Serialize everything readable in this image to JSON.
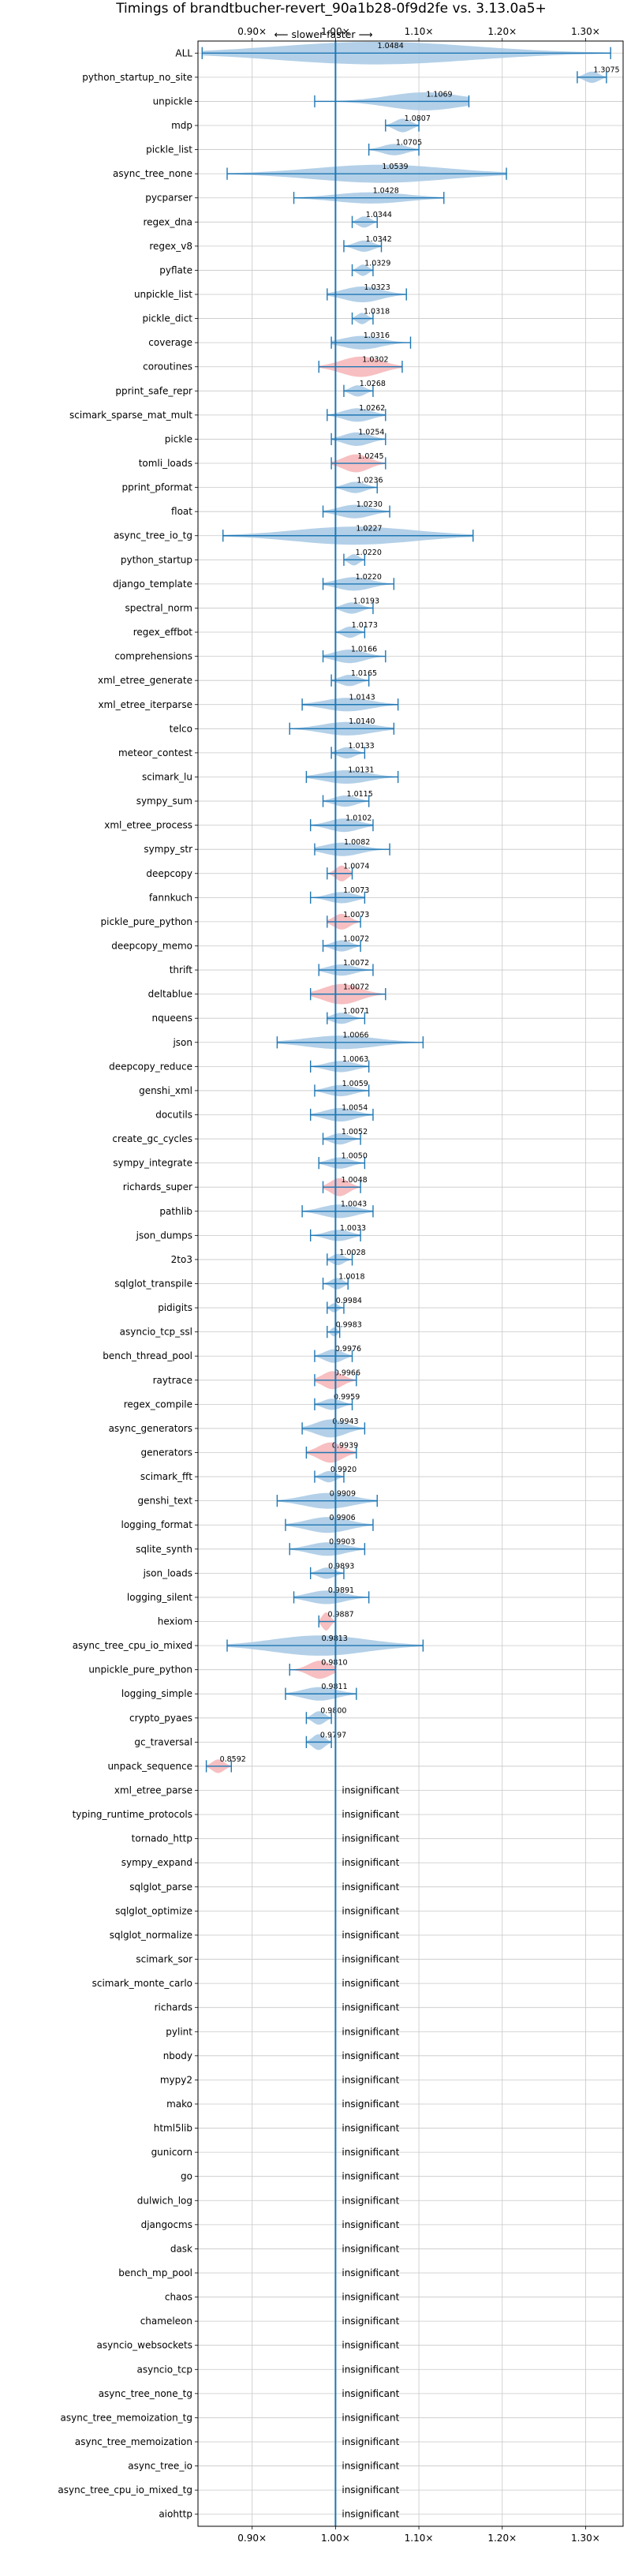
{
  "chart_data": {
    "type": "violin",
    "title": "Timings of brandtbucher-revert_90a1b28-0f9d2fe vs. 3.13.0a5+",
    "subtitle": "⟵ slower   faster ⟶",
    "xlim": [
      0.835,
      1.345
    ],
    "xticks": [
      0.9,
      1.0,
      1.1,
      1.2,
      1.3
    ],
    "xtick_labels": [
      "0.90×",
      "1.00×",
      "1.10×",
      "1.20×",
      "1.30×"
    ],
    "grid": true,
    "reference_line": 1.0,
    "colors": {
      "faster": "#a6c8e4",
      "slower": "#f6b4b6",
      "line": "#1f77b4",
      "grid": "#c8c8c8"
    },
    "insignificant_label": "insignificant",
    "benchmarks": [
      {
        "name": "ALL",
        "mean": 1.0484,
        "min": 0.84,
        "max": 1.33,
        "w": 1.0,
        "slower": false
      },
      {
        "name": "python_startup_no_site",
        "mean": 1.3075,
        "min": 1.29,
        "max": 1.325,
        "w": 0.5,
        "slower": false
      },
      {
        "name": "unpickle",
        "mean": 1.1069,
        "min": 0.975,
        "max": 1.16,
        "w": 0.8,
        "slower": false
      },
      {
        "name": "mdp",
        "mean": 1.0807,
        "min": 1.06,
        "max": 1.1,
        "w": 0.6,
        "slower": false
      },
      {
        "name": "pickle_list",
        "mean": 1.0705,
        "min": 1.04,
        "max": 1.1,
        "w": 0.5,
        "slower": false
      },
      {
        "name": "async_tree_none",
        "mean": 1.0539,
        "min": 0.87,
        "max": 1.205,
        "w": 0.8,
        "slower": false
      },
      {
        "name": "pycparser",
        "mean": 1.0428,
        "min": 0.95,
        "max": 1.13,
        "w": 0.5,
        "slower": false
      },
      {
        "name": "regex_dna",
        "mean": 1.0344,
        "min": 1.02,
        "max": 1.05,
        "w": 0.5,
        "slower": false
      },
      {
        "name": "regex_v8",
        "mean": 1.0342,
        "min": 1.01,
        "max": 1.055,
        "w": 0.5,
        "slower": false
      },
      {
        "name": "pyflate",
        "mean": 1.0329,
        "min": 1.02,
        "max": 1.045,
        "w": 0.5,
        "slower": false
      },
      {
        "name": "unpickle_list",
        "mean": 1.0323,
        "min": 0.99,
        "max": 1.085,
        "w": 0.7,
        "slower": false
      },
      {
        "name": "pickle_dict",
        "mean": 1.0318,
        "min": 1.02,
        "max": 1.045,
        "w": 0.5,
        "slower": false
      },
      {
        "name": "coverage",
        "mean": 1.0316,
        "min": 0.995,
        "max": 1.09,
        "w": 0.6,
        "slower": false
      },
      {
        "name": "coroutines",
        "mean": 1.0302,
        "min": 0.98,
        "max": 1.08,
        "w": 0.9,
        "slower": true
      },
      {
        "name": "pprint_safe_repr",
        "mean": 1.0268,
        "min": 1.01,
        "max": 1.045,
        "w": 0.5,
        "slower": false
      },
      {
        "name": "scimark_sparse_mat_mult",
        "mean": 1.0262,
        "min": 0.99,
        "max": 1.06,
        "w": 0.6,
        "slower": false
      },
      {
        "name": "pickle",
        "mean": 1.0254,
        "min": 0.995,
        "max": 1.06,
        "w": 0.6,
        "slower": false
      },
      {
        "name": "tomli_loads",
        "mean": 1.0245,
        "min": 0.995,
        "max": 1.06,
        "w": 0.8,
        "slower": true
      },
      {
        "name": "pprint_pformat",
        "mean": 1.0236,
        "min": 1.0,
        "max": 1.05,
        "w": 0.5,
        "slower": false
      },
      {
        "name": "float",
        "mean": 1.023,
        "min": 0.985,
        "max": 1.065,
        "w": 0.6,
        "slower": false
      },
      {
        "name": "async_tree_io_tg",
        "mean": 1.0227,
        "min": 0.865,
        "max": 1.165,
        "w": 0.8,
        "slower": false
      },
      {
        "name": "python_startup",
        "mean": 1.022,
        "min": 1.01,
        "max": 1.035,
        "w": 0.5,
        "slower": false
      },
      {
        "name": "django_template",
        "mean": 1.022,
        "min": 0.985,
        "max": 1.07,
        "w": 0.6,
        "slower": false
      },
      {
        "name": "spectral_norm",
        "mean": 1.0193,
        "min": 1.0,
        "max": 1.045,
        "w": 0.5,
        "slower": false
      },
      {
        "name": "regex_effbot",
        "mean": 1.0173,
        "min": 1.0,
        "max": 1.035,
        "w": 0.5,
        "slower": false
      },
      {
        "name": "comprehensions",
        "mean": 1.0166,
        "min": 0.985,
        "max": 1.06,
        "w": 0.6,
        "slower": false
      },
      {
        "name": "xml_etree_generate",
        "mean": 1.0165,
        "min": 0.995,
        "max": 1.04,
        "w": 0.5,
        "slower": false
      },
      {
        "name": "xml_etree_iterparse",
        "mean": 1.0143,
        "min": 0.96,
        "max": 1.075,
        "w": 0.6,
        "slower": false
      },
      {
        "name": "telco",
        "mean": 1.014,
        "min": 0.945,
        "max": 1.07,
        "w": 0.6,
        "slower": false
      },
      {
        "name": "meteor_contest",
        "mean": 1.0133,
        "min": 0.995,
        "max": 1.035,
        "w": 0.5,
        "slower": false
      },
      {
        "name": "scimark_lu",
        "mean": 1.0131,
        "min": 0.965,
        "max": 1.075,
        "w": 0.6,
        "slower": false
      },
      {
        "name": "sympy_sum",
        "mean": 1.0115,
        "min": 0.985,
        "max": 1.04,
        "w": 0.5,
        "slower": false
      },
      {
        "name": "xml_etree_process",
        "mean": 1.0102,
        "min": 0.97,
        "max": 1.045,
        "w": 0.6,
        "slower": false
      },
      {
        "name": "sympy_str",
        "mean": 1.0082,
        "min": 0.975,
        "max": 1.065,
        "w": 0.6,
        "slower": false
      },
      {
        "name": "deepcopy",
        "mean": 1.0074,
        "min": 0.99,
        "max": 1.02,
        "w": 0.7,
        "slower": true
      },
      {
        "name": "fannkuch",
        "mean": 1.0073,
        "min": 0.97,
        "max": 1.035,
        "w": 0.5,
        "slower": false
      },
      {
        "name": "pickle_pure_python",
        "mean": 1.0073,
        "min": 0.99,
        "max": 1.03,
        "w": 0.7,
        "slower": true
      },
      {
        "name": "deepcopy_memo",
        "mean": 1.0072,
        "min": 0.985,
        "max": 1.03,
        "w": 0.5,
        "slower": false
      },
      {
        "name": "thrift",
        "mean": 1.0072,
        "min": 0.98,
        "max": 1.045,
        "w": 0.5,
        "slower": false
      },
      {
        "name": "deltablue",
        "mean": 1.0072,
        "min": 0.97,
        "max": 1.06,
        "w": 0.9,
        "slower": true
      },
      {
        "name": "nqueens",
        "mean": 1.0071,
        "min": 0.99,
        "max": 1.035,
        "w": 0.5,
        "slower": false
      },
      {
        "name": "json",
        "mean": 1.0066,
        "min": 0.93,
        "max": 1.105,
        "w": 0.6,
        "slower": false
      },
      {
        "name": "deepcopy_reduce",
        "mean": 1.0063,
        "min": 0.97,
        "max": 1.04,
        "w": 0.5,
        "slower": false
      },
      {
        "name": "genshi_xml",
        "mean": 1.0059,
        "min": 0.975,
        "max": 1.04,
        "w": 0.5,
        "slower": false
      },
      {
        "name": "docutils",
        "mean": 1.0054,
        "min": 0.97,
        "max": 1.045,
        "w": 0.6,
        "slower": false
      },
      {
        "name": "create_gc_cycles",
        "mean": 1.0052,
        "min": 0.985,
        "max": 1.03,
        "w": 0.5,
        "slower": false
      },
      {
        "name": "sympy_integrate",
        "mean": 1.005,
        "min": 0.98,
        "max": 1.035,
        "w": 0.5,
        "slower": false
      },
      {
        "name": "richards_super",
        "mean": 1.0048,
        "min": 0.985,
        "max": 1.03,
        "w": 0.8,
        "slower": true
      },
      {
        "name": "pathlib",
        "mean": 1.0043,
        "min": 0.96,
        "max": 1.045,
        "w": 0.6,
        "slower": false
      },
      {
        "name": "json_dumps",
        "mean": 1.0033,
        "min": 0.97,
        "max": 1.03,
        "w": 0.5,
        "slower": false
      },
      {
        "name": "2to3",
        "mean": 1.0028,
        "min": 0.99,
        "max": 1.02,
        "w": 0.5,
        "slower": false
      },
      {
        "name": "sqlglot_transpile",
        "mean": 1.0018,
        "min": 0.985,
        "max": 1.015,
        "w": 0.5,
        "slower": false
      },
      {
        "name": "pidigits",
        "mean": 0.9984,
        "min": 0.99,
        "max": 1.01,
        "w": 0.4,
        "slower": false
      },
      {
        "name": "asyncio_tcp_ssl",
        "mean": 0.9983,
        "min": 0.99,
        "max": 1.005,
        "w": 0.4,
        "slower": false
      },
      {
        "name": "bench_thread_pool",
        "mean": 0.9976,
        "min": 0.975,
        "max": 1.02,
        "w": 0.6,
        "slower": false
      },
      {
        "name": "raytrace",
        "mean": 0.9966,
        "min": 0.975,
        "max": 1.025,
        "w": 0.8,
        "slower": true
      },
      {
        "name": "regex_compile",
        "mean": 0.9959,
        "min": 0.975,
        "max": 1.02,
        "w": 0.5,
        "slower": false
      },
      {
        "name": "async_generators",
        "mean": 0.9943,
        "min": 0.96,
        "max": 1.035,
        "w": 0.8,
        "slower": false
      },
      {
        "name": "generators",
        "mean": 0.9939,
        "min": 0.965,
        "max": 1.025,
        "w": 0.9,
        "slower": true
      },
      {
        "name": "scimark_fft",
        "mean": 0.992,
        "min": 0.975,
        "max": 1.01,
        "w": 0.5,
        "slower": false
      },
      {
        "name": "genshi_text",
        "mean": 0.9909,
        "min": 0.93,
        "max": 1.05,
        "w": 0.7,
        "slower": false
      },
      {
        "name": "logging_format",
        "mean": 0.9906,
        "min": 0.94,
        "max": 1.045,
        "w": 0.7,
        "slower": false
      },
      {
        "name": "sqlite_synth",
        "mean": 0.9903,
        "min": 0.945,
        "max": 1.035,
        "w": 0.6,
        "slower": false
      },
      {
        "name": "json_loads",
        "mean": 0.9893,
        "min": 0.97,
        "max": 1.01,
        "w": 0.5,
        "slower": false
      },
      {
        "name": "logging_silent",
        "mean": 0.9891,
        "min": 0.95,
        "max": 1.04,
        "w": 0.6,
        "slower": false
      },
      {
        "name": "hexiom",
        "mean": 0.9887,
        "min": 0.98,
        "max": 1.0,
        "w": 0.8,
        "slower": true
      },
      {
        "name": "async_tree_cpu_io_mixed",
        "mean": 0.9813,
        "min": 0.87,
        "max": 1.105,
        "w": 0.9,
        "slower": false
      },
      {
        "name": "unpickle_pure_python",
        "mean": 0.981,
        "min": 0.945,
        "max": 1.0,
        "w": 0.8,
        "slower": true
      },
      {
        "name": "logging_simple",
        "mean": 0.9811,
        "min": 0.94,
        "max": 1.025,
        "w": 0.6,
        "slower": false
      },
      {
        "name": "crypto_pyaes",
        "mean": 0.98,
        "min": 0.965,
        "max": 0.995,
        "w": 0.6,
        "slower": false
      },
      {
        "name": "gc_traversal",
        "mean": 0.9797,
        "min": 0.965,
        "max": 0.995,
        "w": 0.7,
        "slower": false
      },
      {
        "name": "unpack_sequence",
        "mean": 0.8592,
        "min": 0.845,
        "max": 0.875,
        "w": 0.6,
        "slower": true
      },
      {
        "name": "xml_etree_parse",
        "insignificant": true
      },
      {
        "name": "typing_runtime_protocols",
        "insignificant": true
      },
      {
        "name": "tornado_http",
        "insignificant": true
      },
      {
        "name": "sympy_expand",
        "insignificant": true
      },
      {
        "name": "sqlglot_parse",
        "insignificant": true
      },
      {
        "name": "sqlglot_optimize",
        "insignificant": true
      },
      {
        "name": "sqlglot_normalize",
        "insignificant": true
      },
      {
        "name": "scimark_sor",
        "insignificant": true
      },
      {
        "name": "scimark_monte_carlo",
        "insignificant": true
      },
      {
        "name": "richards",
        "insignificant": true
      },
      {
        "name": "pylint",
        "insignificant": true
      },
      {
        "name": "nbody",
        "insignificant": true
      },
      {
        "name": "mypy2",
        "insignificant": true
      },
      {
        "name": "mako",
        "insignificant": true
      },
      {
        "name": "html5lib",
        "insignificant": true
      },
      {
        "name": "gunicorn",
        "insignificant": true
      },
      {
        "name": "go",
        "insignificant": true
      },
      {
        "name": "dulwich_log",
        "insignificant": true
      },
      {
        "name": "djangocms",
        "insignificant": true
      },
      {
        "name": "dask",
        "insignificant": true
      },
      {
        "name": "bench_mp_pool",
        "insignificant": true
      },
      {
        "name": "chaos",
        "insignificant": true
      },
      {
        "name": "chameleon",
        "insignificant": true
      },
      {
        "name": "asyncio_websockets",
        "insignificant": true
      },
      {
        "name": "asyncio_tcp",
        "insignificant": true
      },
      {
        "name": "async_tree_none_tg",
        "insignificant": true
      },
      {
        "name": "async_tree_memoization_tg",
        "insignificant": true
      },
      {
        "name": "async_tree_memoization",
        "insignificant": true
      },
      {
        "name": "async_tree_io",
        "insignificant": true
      },
      {
        "name": "async_tree_cpu_io_mixed_tg",
        "insignificant": true
      },
      {
        "name": "aiohttp",
        "insignificant": true
      }
    ]
  }
}
